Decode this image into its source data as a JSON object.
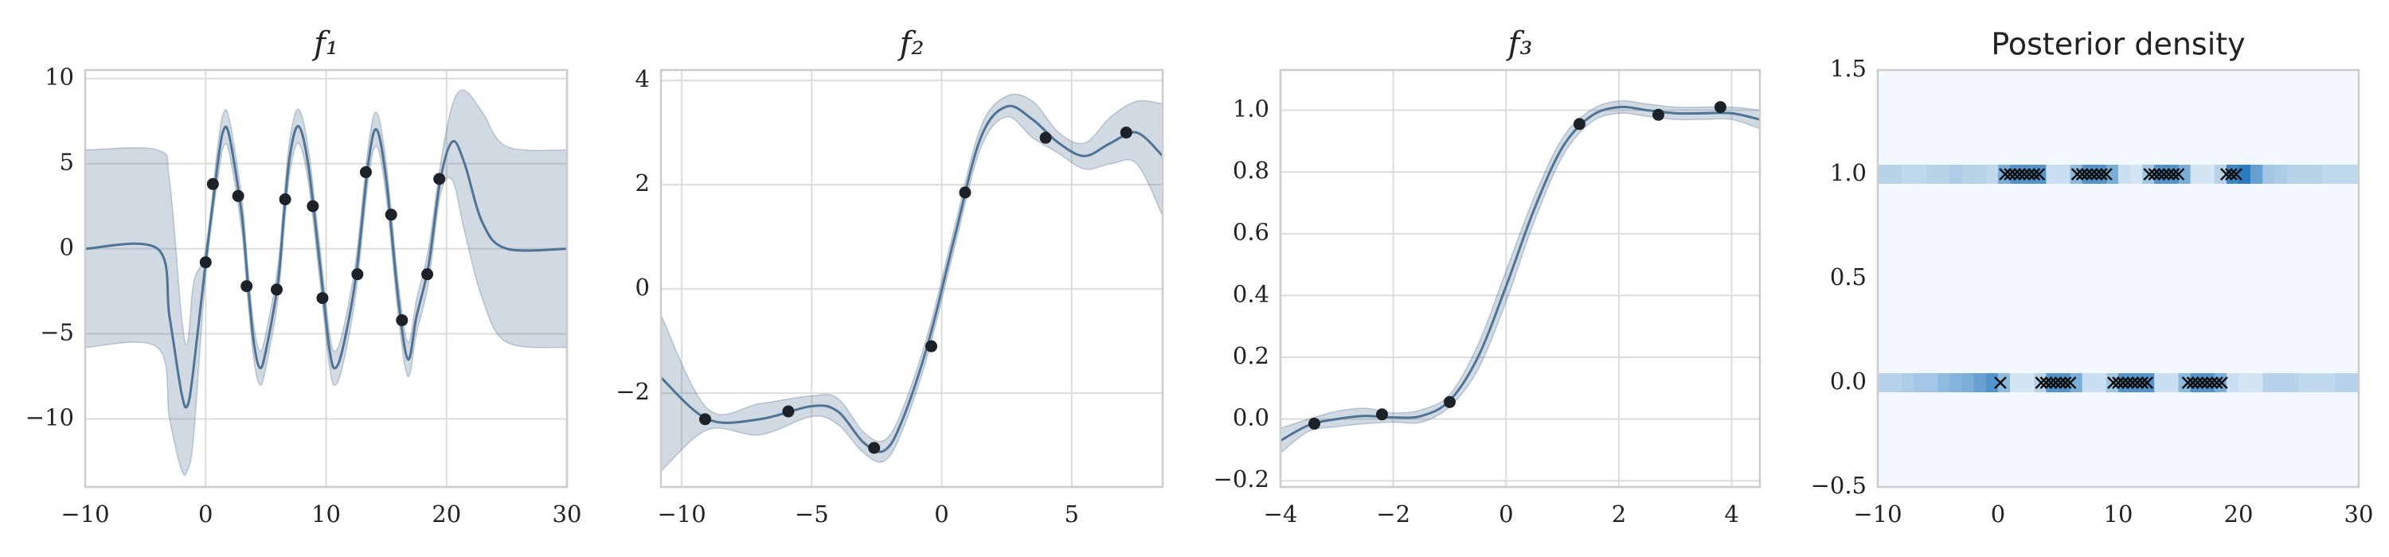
{
  "chart_data": [
    {
      "type": "gp",
      "title": "f₁",
      "xlim": [
        -10,
        30
      ],
      "ylim": [
        -14,
        10.5
      ],
      "xticks": [
        {
          "value": -10,
          "label": "−10"
        },
        0,
        10,
        20,
        30
      ],
      "yticks": [
        {
          "value": -10,
          "label": "−10"
        },
        {
          "value": -5,
          "label": "−5"
        },
        0,
        5,
        10
      ],
      "color": "#4f7394",
      "band_color": "#5a7896",
      "grid": true,
      "x": [
        -10,
        -4,
        -3,
        -2,
        -1.5,
        -1,
        0,
        1,
        1.5,
        2,
        3,
        3.5,
        4,
        4.5,
        5,
        6,
        6.5,
        7,
        7.7,
        8.5,
        9.5,
        10.3,
        10.8,
        11.5,
        12.5,
        13.5,
        14.2,
        15,
        16,
        16.8,
        17.5,
        18.5,
        19.5,
        20.5,
        21.5,
        23,
        25,
        30
      ],
      "mean": [
        0,
        0,
        -4,
        -8.5,
        -9.2,
        -7,
        -0.8,
        5,
        7,
        6.5,
        2,
        -2,
        -5.5,
        -7,
        -6,
        -2,
        2,
        5.5,
        7.2,
        5,
        -1,
        -6,
        -7,
        -5.5,
        -1.5,
        5,
        7,
        4,
        -3,
        -6.5,
        -4,
        -1,
        4.1,
        6.3,
        5,
        1.5,
        0,
        0
      ],
      "upper": [
        5.8,
        5.8,
        4,
        -4,
        -5.5,
        -2,
        0,
        6,
        8,
        7.5,
        3,
        -1,
        -4.5,
        -6,
        -5,
        -1,
        3,
        6.5,
        8.2,
        6,
        0,
        -5,
        -6,
        -4.5,
        -0.5,
        6,
        8,
        5,
        -2,
        -5.5,
        -3,
        0,
        5,
        8.5,
        9.3,
        8,
        6,
        5.8
      ],
      "lower": [
        -5.8,
        -5.8,
        -10,
        -13,
        -13,
        -11,
        -1.6,
        4,
        6,
        5.5,
        1,
        -3,
        -6.5,
        -8,
        -7,
        -3,
        1,
        4.5,
        6.2,
        4,
        -2,
        -7,
        -8,
        -6.5,
        -2.5,
        4,
        6,
        3,
        -4,
        -7.5,
        -5,
        -2,
        3.2,
        4,
        1,
        -3,
        -5.5,
        -5.8
      ],
      "points": {
        "x": [
          0,
          0.6,
          2.7,
          3.4,
          5.9,
          6.6,
          8.9,
          9.7,
          12.6,
          13.3,
          15.4,
          16.3,
          18.4,
          19.4
        ],
        "y": [
          -0.8,
          3.8,
          3.1,
          -2.2,
          -2.4,
          2.9,
          2.5,
          -2.9,
          -1.5,
          4.5,
          2.0,
          -4.2,
          -1.5,
          4.1
        ]
      }
    },
    {
      "type": "gp",
      "title": "f₂",
      "xlim": [
        -10.8,
        8.5
      ],
      "ylim": [
        -3.8,
        4.2
      ],
      "xticks": [
        {
          "value": -10,
          "label": "−10"
        },
        {
          "value": -5,
          "label": "−5"
        },
        0,
        5
      ],
      "yticks": [
        {
          "value": -2,
          "label": "−2"
        },
        0,
        2,
        4
      ],
      "color": "#4f7394",
      "band_color": "#5a7896",
      "grid": true,
      "x": [
        -10.8,
        -9,
        -7,
        -5,
        -4,
        -3,
        -2.2,
        -1.5,
        -0.5,
        0.5,
        1.5,
        2.5,
        3.5,
        4.5,
        5.5,
        6.5,
        7.5,
        8.5
      ],
      "mean": [
        -1.7,
        -2.5,
        -2.5,
        -2.25,
        -2.35,
        -2.95,
        -3.1,
        -2.5,
        -1.0,
        1.0,
        2.9,
        3.5,
        3.25,
        2.8,
        2.55,
        2.8,
        3.0,
        2.55
      ],
      "upper": [
        -0.5,
        -2.3,
        -2.2,
        -2.05,
        -2.1,
        -2.75,
        -2.9,
        -2.3,
        -0.8,
        1.2,
        3.1,
        3.7,
        3.6,
        3.0,
        2.8,
        3.3,
        3.6,
        3.55
      ],
      "lower": [
        -3.5,
        -2.7,
        -2.8,
        -2.45,
        -2.6,
        -3.15,
        -3.3,
        -2.7,
        -1.2,
        0.8,
        2.7,
        3.3,
        2.9,
        2.6,
        2.3,
        2.4,
        2.4,
        1.4
      ],
      "points": {
        "x": [
          -9.1,
          -5.9,
          -2.6,
          -0.4,
          0.9,
          4.0,
          7.1
        ],
        "y": [
          -2.5,
          -2.35,
          -3.05,
          -1.1,
          1.85,
          2.9,
          3.0
        ]
      }
    },
    {
      "type": "gp",
      "title": "f₃",
      "xlim": [
        -4,
        4.5
      ],
      "ylim": [
        -0.22,
        1.13
      ],
      "xticks": [
        {
          "value": -4,
          "label": "−4"
        },
        {
          "value": -2,
          "label": "−2"
        },
        0,
        2,
        4
      ],
      "yticks": [
        {
          "value": -0.2,
          "label": "−0.2"
        },
        {
          "value": 0,
          "label": "0.0"
        },
        0.2,
        0.4,
        0.6,
        0.8,
        {
          "value": 1,
          "label": "1.0"
        }
      ],
      "color": "#4f7394",
      "band_color": "#5a7896",
      "grid": true,
      "x": [
        -4,
        -3.5,
        -3,
        -2.5,
        -2,
        -1.5,
        -1,
        -0.5,
        0,
        0.5,
        1,
        1.5,
        2,
        2.5,
        3,
        3.5,
        4,
        4.5
      ],
      "mean": [
        -0.07,
        -0.02,
        0.0,
        0.01,
        0.005,
        0.01,
        0.06,
        0.2,
        0.43,
        0.68,
        0.88,
        0.98,
        1.01,
        1.0,
        0.99,
        0.99,
        0.99,
        0.97
      ],
      "upper": [
        -0.03,
        0.0,
        0.025,
        0.035,
        0.02,
        0.03,
        0.08,
        0.24,
        0.48,
        0.72,
        0.91,
        1.0,
        1.03,
        1.02,
        1.01,
        1.01,
        1.01,
        1.0
      ],
      "lower": [
        -0.11,
        -0.04,
        -0.025,
        -0.015,
        -0.01,
        -0.01,
        0.04,
        0.16,
        0.38,
        0.64,
        0.85,
        0.96,
        0.99,
        0.98,
        0.97,
        0.97,
        0.97,
        0.94
      ],
      "points": {
        "x": [
          -3.4,
          -2.2,
          -1.0,
          1.3,
          2.7,
          3.8
        ],
        "y": [
          -0.015,
          0.015,
          0.055,
          0.955,
          0.985,
          1.01
        ]
      }
    },
    {
      "type": "density",
      "title": "Posterior density",
      "xlim": [
        -10,
        30
      ],
      "ylim": [
        -0.5,
        1.5
      ],
      "xticks": [
        {
          "value": -10,
          "label": "−10"
        },
        0,
        10,
        20,
        30
      ],
      "yticks": [
        {
          "value": -0.5,
          "label": "−0.5"
        },
        {
          "value": 0,
          "label": "0.0"
        },
        0.5,
        {
          "value": 1,
          "label": "1.0"
        },
        1.5
      ],
      "color": "#2a7bbf",
      "background": "#f2f8fd",
      "bins": [
        -10,
        -9,
        -8,
        -7,
        -6,
        -5,
        -4,
        -3,
        -2,
        -1,
        0,
        1,
        2,
        3,
        4,
        5,
        6,
        7,
        8,
        9,
        10,
        11,
        12,
        13,
        14,
        15,
        16,
        17,
        18,
        19,
        20,
        21,
        22,
        23,
        24,
        25,
        26,
        27,
        28,
        29,
        30
      ],
      "rows": [
        {
          "y": 1,
          "values": [
            0.3,
            0.3,
            0.25,
            0.25,
            0.3,
            0.3,
            0.35,
            0.3,
            0.3,
            0.25,
            0.6,
            0.8,
            0.8,
            0.8,
            0.2,
            0.2,
            0.5,
            0.8,
            0.8,
            0.6,
            0.2,
            0.15,
            0.4,
            0.8,
            0.8,
            0.6,
            0.15,
            0.15,
            0.3,
            0.9,
            1.0,
            0.7,
            0.4,
            0.35,
            0.3,
            0.3,
            0.3,
            0.25,
            0.25,
            0.25
          ]
        },
        {
          "y": 0,
          "values": [
            0.3,
            0.3,
            0.35,
            0.4,
            0.4,
            0.5,
            0.55,
            0.6,
            0.7,
            0.8,
            0.5,
            0.15,
            0.15,
            0.3,
            0.8,
            0.8,
            0.6,
            0.2,
            0.2,
            0.4,
            0.8,
            0.8,
            0.8,
            0.2,
            0.2,
            0.5,
            0.8,
            0.8,
            0.6,
            0.2,
            0.15,
            0.15,
            0.3,
            0.3,
            0.3,
            0.25,
            0.25,
            0.25,
            0.3,
            0.3
          ]
        }
      ],
      "crosses": {
        "x": [
          0.6,
          1,
          1.4,
          1.8,
          2.2,
          2.6,
          3,
          3.4,
          6.6,
          7,
          7.4,
          7.8,
          8.2,
          8.6,
          9,
          12.6,
          13,
          13.4,
          13.8,
          14.2,
          14.6,
          15,
          19,
          19.4,
          19.8,
          0.2,
          3.6,
          4,
          4.4,
          4.8,
          5.2,
          5.6,
          6,
          9.6,
          10,
          10.4,
          10.8,
          11.2,
          11.6,
          12,
          12.4,
          15.8,
          16.2,
          16.6,
          17,
          17.4,
          17.8,
          18.2,
          18.6
        ],
        "y": [
          1,
          1,
          1,
          1,
          1,
          1,
          1,
          1,
          1,
          1,
          1,
          1,
          1,
          1,
          1,
          1,
          1,
          1,
          1,
          1,
          1,
          1,
          1,
          1,
          1,
          0,
          0,
          0,
          0,
          0,
          0,
          0,
          0,
          0,
          0,
          0,
          0,
          0,
          0,
          0,
          0,
          0,
          0,
          0,
          0,
          0,
          0,
          0,
          0
        ]
      }
    }
  ]
}
